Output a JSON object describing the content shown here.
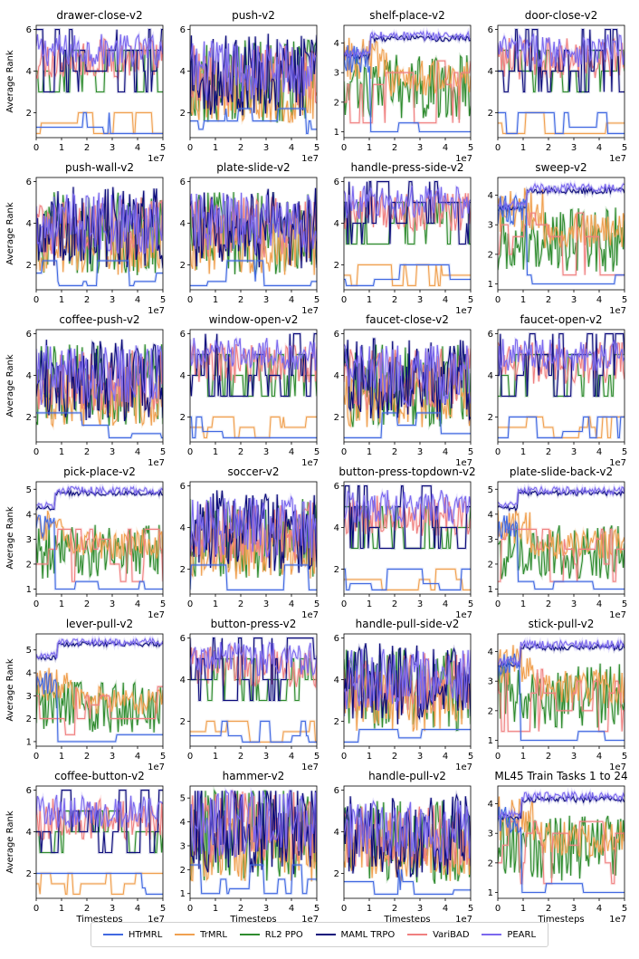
{
  "figure": {
    "ylabel": "Average Rank",
    "xlabel": "Timesteps",
    "x_multiplier_label": "1e7"
  },
  "legend": [
    {
      "name": "HTrMRL",
      "color": "#4169e1"
    },
    {
      "name": "TrMRL",
      "color": "#f0a050"
    },
    {
      "name": "RL2 PPO",
      "color": "#2e8b2e"
    },
    {
      "name": "MAML TRPO",
      "color": "#0a0a7a"
    },
    {
      "name": "VariBAD",
      "color": "#f08080"
    },
    {
      "name": "PEARL",
      "color": "#7b68ee"
    }
  ],
  "chart_data": [
    {
      "type": "line",
      "title": "drawer-close-v2",
      "xlim": [
        0,
        5
      ],
      "ylim": [
        0.8,
        6.2
      ],
      "yticks": [
        2,
        4,
        6
      ],
      "xticks": [
        0,
        1,
        2,
        3,
        4,
        5
      ],
      "xlabel": "",
      "ylabel": "Average Rank",
      "mode": "high-noisy"
    },
    {
      "type": "line",
      "title": "push-v2",
      "xlim": [
        0,
        5
      ],
      "ylim": [
        0.8,
        6.2
      ],
      "yticks": [
        2,
        4,
        6
      ],
      "xticks": [
        0,
        1,
        2,
        3,
        4,
        5
      ],
      "xlabel": "",
      "ylabel": "",
      "mode": "mixed"
    },
    {
      "type": "line",
      "title": "shelf-place-v2",
      "xlim": [
        0,
        5
      ],
      "ylim": [
        0.8,
        4.6
      ],
      "yticks": [
        1,
        2,
        3,
        4
      ],
      "xticks": [
        0,
        1,
        2,
        3,
        4,
        5
      ],
      "xlabel": "",
      "ylabel": "",
      "mode": "pearl-top"
    },
    {
      "type": "line",
      "title": "door-close-v2",
      "xlim": [
        0,
        5
      ],
      "ylim": [
        0.8,
        6.2
      ],
      "yticks": [
        2,
        4,
        6
      ],
      "xticks": [
        0,
        1,
        2,
        3,
        4,
        5
      ],
      "xlabel": "",
      "ylabel": "",
      "mode": "high-noisy"
    },
    {
      "type": "line",
      "title": "push-wall-v2",
      "xlim": [
        0,
        5
      ],
      "ylim": [
        0.8,
        6.2
      ],
      "yticks": [
        2,
        4,
        6
      ],
      "xticks": [
        0,
        1,
        2,
        3,
        4,
        5
      ],
      "xlabel": "",
      "ylabel": "Average Rank",
      "mode": "mixed"
    },
    {
      "type": "line",
      "title": "plate-slide-v2",
      "xlim": [
        0,
        5
      ],
      "ylim": [
        0.8,
        6.2
      ],
      "yticks": [
        2,
        4,
        6
      ],
      "xticks": [
        0,
        1,
        2,
        3,
        4,
        5
      ],
      "xlabel": "",
      "ylabel": "",
      "mode": "mixed"
    },
    {
      "type": "line",
      "title": "handle-press-side-v2",
      "xlim": [
        0,
        5
      ],
      "ylim": [
        0.8,
        6.2
      ],
      "yticks": [
        2,
        4,
        6
      ],
      "xticks": [
        0,
        1,
        2,
        3,
        4,
        5
      ],
      "xlabel": "",
      "ylabel": "",
      "mode": "high-noisy"
    },
    {
      "type": "line",
      "title": "sweep-v2",
      "xlim": [
        0,
        5
      ],
      "ylim": [
        0.8,
        4.6
      ],
      "yticks": [
        1,
        2,
        3,
        4
      ],
      "xticks": [
        0,
        1,
        2,
        3,
        4,
        5
      ],
      "xlabel": "",
      "ylabel": "",
      "mode": "pearl-top"
    },
    {
      "type": "line",
      "title": "coffee-push-v2",
      "xlim": [
        0,
        5
      ],
      "ylim": [
        0.8,
        6.2
      ],
      "yticks": [
        2,
        4,
        6
      ],
      "xticks": [
        0,
        1,
        2,
        3,
        4,
        5
      ],
      "xlabel": "",
      "ylabel": "Average Rank",
      "mode": "mixed"
    },
    {
      "type": "line",
      "title": "window-open-v2",
      "xlim": [
        0,
        5
      ],
      "ylim": [
        0.8,
        6.2
      ],
      "yticks": [
        2,
        4,
        6
      ],
      "xticks": [
        0,
        1,
        2,
        3,
        4,
        5
      ],
      "xlabel": "",
      "ylabel": "",
      "mode": "high-noisy"
    },
    {
      "type": "line",
      "title": "faucet-close-v2",
      "xlim": [
        0,
        5
      ],
      "ylim": [
        0.8,
        6.2
      ],
      "yticks": [
        2,
        4,
        6
      ],
      "xticks": [
        0,
        1,
        2,
        3,
        4,
        5
      ],
      "xlabel": "",
      "ylabel": "",
      "mode": "mixed"
    },
    {
      "type": "line",
      "title": "faucet-open-v2",
      "xlim": [
        0,
        5
      ],
      "ylim": [
        0.8,
        6.2
      ],
      "yticks": [
        2,
        4,
        6
      ],
      "xticks": [
        0,
        1,
        2,
        3,
        4,
        5
      ],
      "xlabel": "",
      "ylabel": "",
      "mode": "high-noisy"
    },
    {
      "type": "line",
      "title": "pick-place-v2",
      "xlim": [
        0,
        5
      ],
      "ylim": [
        0.8,
        5.3
      ],
      "yticks": [
        1,
        2,
        3,
        4,
        5
      ],
      "xticks": [
        0,
        1,
        2,
        3,
        4,
        5
      ],
      "xlabel": "",
      "ylabel": "Average Rank",
      "mode": "pearl-top"
    },
    {
      "type": "line",
      "title": "soccer-v2",
      "xlim": [
        0,
        5
      ],
      "ylim": [
        0.8,
        6.2
      ],
      "yticks": [
        2,
        4,
        6
      ],
      "xticks": [
        0,
        1,
        2,
        3,
        4,
        5
      ],
      "xlabel": "",
      "ylabel": "",
      "mode": "mixed"
    },
    {
      "type": "line",
      "title": "button-press-topdown-v2",
      "xlim": [
        0,
        5
      ],
      "ylim": [
        0.8,
        6.2
      ],
      "yticks": [
        2,
        4,
        6
      ],
      "xticks": [
        0,
        1,
        2,
        3,
        4,
        5
      ],
      "xlabel": "",
      "ylabel": "",
      "mode": "high-noisy"
    },
    {
      "type": "line",
      "title": "plate-slide-back-v2",
      "xlim": [
        0,
        5
      ],
      "ylim": [
        0.8,
        5.3
      ],
      "yticks": [
        1,
        2,
        3,
        4,
        5
      ],
      "xticks": [
        0,
        1,
        2,
        3,
        4,
        5
      ],
      "xlabel": "",
      "ylabel": "",
      "mode": "pearl-top"
    },
    {
      "type": "line",
      "title": "lever-pull-v2",
      "xlim": [
        0,
        5
      ],
      "ylim": [
        0.8,
        5.7
      ],
      "yticks": [
        1,
        2,
        3,
        4,
        5
      ],
      "xticks": [
        0,
        1,
        2,
        3,
        4,
        5
      ],
      "xlabel": "",
      "ylabel": "Average Rank",
      "mode": "pearl-top"
    },
    {
      "type": "line",
      "title": "button-press-v2",
      "xlim": [
        0,
        5
      ],
      "ylim": [
        0.8,
        6.2
      ],
      "yticks": [
        2,
        4,
        6
      ],
      "xticks": [
        0,
        1,
        2,
        3,
        4,
        5
      ],
      "xlabel": "",
      "ylabel": "",
      "mode": "high-noisy"
    },
    {
      "type": "line",
      "title": "handle-pull-side-v2",
      "xlim": [
        0,
        5
      ],
      "ylim": [
        0.8,
        6.2
      ],
      "yticks": [
        2,
        4,
        6
      ],
      "xticks": [
        0,
        1,
        2,
        3,
        4,
        5
      ],
      "xlabel": "",
      "ylabel": "",
      "mode": "mixed"
    },
    {
      "type": "line",
      "title": "stick-pull-v2",
      "xlim": [
        0,
        5
      ],
      "ylim": [
        0.8,
        4.6
      ],
      "yticks": [
        1,
        2,
        3,
        4
      ],
      "xticks": [
        0,
        1,
        2,
        3,
        4,
        5
      ],
      "xlabel": "",
      "ylabel": "",
      "mode": "pearl-top"
    },
    {
      "type": "line",
      "title": "coffee-button-v2",
      "xlim": [
        0,
        5
      ],
      "ylim": [
        0.8,
        6.2
      ],
      "yticks": [
        2,
        4,
        6
      ],
      "xticks": [
        0,
        1,
        2,
        3,
        4,
        5
      ],
      "xlabel": "Timesteps",
      "ylabel": "Average Rank",
      "mode": "high-noisy"
    },
    {
      "type": "line",
      "title": "hammer-v2",
      "xlim": [
        0,
        5
      ],
      "ylim": [
        0.8,
        5.5
      ],
      "yticks": [
        1,
        2,
        3,
        4,
        5
      ],
      "xticks": [
        0,
        1,
        2,
        3,
        4,
        5
      ],
      "xlabel": "Timesteps",
      "ylabel": "",
      "mode": "mixed"
    },
    {
      "type": "line",
      "title": "handle-pull-v2",
      "xlim": [
        0,
        5
      ],
      "ylim": [
        0.8,
        6.2
      ],
      "yticks": [
        2,
        4,
        6
      ],
      "xticks": [
        0,
        1,
        2,
        3,
        4,
        5
      ],
      "xlabel": "Timesteps",
      "ylabel": "",
      "mode": "mixed"
    },
    {
      "type": "line",
      "title": "ML45 Train Tasks 1 to 24",
      "xlim": [
        0,
        5
      ],
      "ylim": [
        0.8,
        4.6
      ],
      "yticks": [
        1,
        2,
        3,
        4
      ],
      "xticks": [
        0,
        1,
        2,
        3,
        4,
        5
      ],
      "xlabel": "Timesteps",
      "ylabel": "",
      "mode": "pearl-top"
    }
  ]
}
